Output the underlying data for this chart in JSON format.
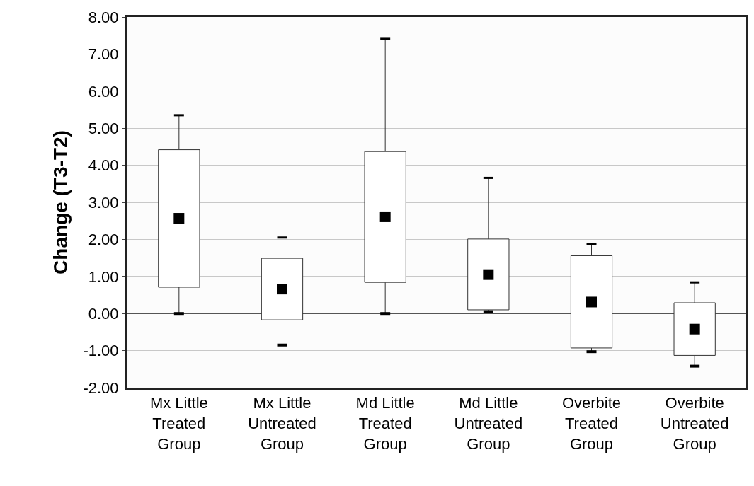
{
  "chart_data": {
    "type": "box",
    "ylabel": "Change (T3-T2)",
    "categories": [
      "Mx Little\nTreated\nGroup",
      "Mx Little\nUntreated\nGroup",
      "Md Little\nTreated\nGroup",
      "Md Little\nUntreated\nGroup",
      "Overbite\nTreated\nGroup",
      "Overbite\nUntreated\nGroup"
    ],
    "boxes": [
      {
        "low": 0.0,
        "q1": 0.71,
        "median": 2.57,
        "q3": 4.42,
        "high": 5.35
      },
      {
        "low": -0.85,
        "q1": -0.17,
        "median": 0.66,
        "q3": 1.49,
        "high": 2.05
      },
      {
        "low": 0.0,
        "q1": 0.84,
        "median": 2.61,
        "q3": 4.37,
        "high": 7.41
      },
      {
        "low": 0.05,
        "q1": 0.1,
        "median": 1.05,
        "q3": 2.01,
        "high": 3.66
      },
      {
        "low": -1.03,
        "q1": -0.93,
        "median": 0.31,
        "q3": 1.56,
        "high": 1.88
      },
      {
        "low": -1.42,
        "q1": -1.13,
        "median": -0.42,
        "q3": 0.29,
        "high": 0.84
      }
    ],
    "color": "#ffffff",
    "ylim": [
      -2,
      8
    ],
    "yticks": [
      {
        "value": -2,
        "label": "-2.00"
      },
      {
        "value": -1,
        "label": "-1.00"
      },
      {
        "value": 0,
        "label": "0.00"
      },
      {
        "value": 1,
        "label": "1.00"
      },
      {
        "value": 2,
        "label": "2.00"
      },
      {
        "value": 3,
        "label": "3.00"
      },
      {
        "value": 4,
        "label": "4.00"
      },
      {
        "value": 5,
        "label": "5.00"
      },
      {
        "value": 6,
        "label": "6.00"
      },
      {
        "value": 7,
        "label": "7.00"
      },
      {
        "value": 8,
        "label": "8.00"
      }
    ],
    "grid": "y",
    "marker": "square"
  }
}
